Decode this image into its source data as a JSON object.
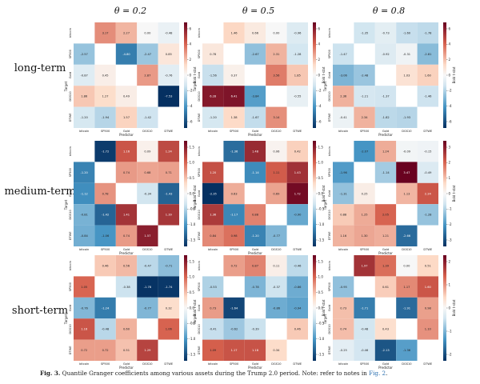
{
  "figure": {
    "caption_label": "Fig. 3.",
    "caption_text": "Quantile Granger coefficients among various assets during the Trump 2.0 period. Note: refer to notes in",
    "caption_link": "Fig. 2",
    "caption_end": "."
  },
  "chart_data": {
    "type": "heatmap",
    "assets": [
      "bitcoin",
      "SP500",
      "Gold",
      "DGS10",
      "DTWE"
    ],
    "xlabel": "Predictor",
    "ylabel": "Target",
    "colorbar_label": "Bold t-stat",
    "columns": [
      "θ = 0.2",
      "θ = 0.5",
      "θ = 0.8"
    ],
    "rows": [
      "long-term",
      "medium-term",
      "short-term"
    ],
    "panels": [
      {
        "row": "long-term",
        "column": "θ = 0.2",
        "cbar_ticks": [
          "6",
          "4",
          "2",
          "0",
          "-2",
          "-4",
          "-6"
        ],
        "vmax": 7,
        "values": [
          [
            null,
            3.17,
            2.27,
            0.0,
            -0.48
          ],
          [
            -2.57,
            null,
            -4.8,
            -2.47,
            0.85
          ],
          [
            -0.87,
            0.45,
            null,
            2.87,
            -0.76
          ],
          [
            1.86,
            1.27,
            0.49,
            null,
            -7.53
          ],
          [
            -1.2,
            -1.94,
            1.57,
            -1.42,
            null
          ]
        ]
      },
      {
        "row": "long-term",
        "column": "θ = 0.5",
        "cbar_ticks": [
          "6",
          "4",
          "2",
          "0",
          "-2",
          "-4",
          "-6"
        ],
        "vmax": 7,
        "values": [
          [
            null,
            1.46,
            0.66,
            0.0,
            -0.96
          ],
          [
            0.78,
            null,
            -2.67,
            2.31,
            -1.28
          ],
          [
            -1.56,
            0.37,
            null,
            3.56,
            1.85
          ],
          [
            6.28,
            6.41,
            -3.84,
            null,
            -0.55
          ],
          [
            -1.2,
            1.38,
            -1.67,
            3.14,
            null
          ]
        ]
      },
      {
        "row": "long-term",
        "column": "θ = 0.8",
        "cbar_ticks": [
          "6",
          "4",
          "2",
          "0",
          "-2",
          "-4",
          "-6"
        ],
        "vmax": 7,
        "values": [
          [
            null,
            -1.35,
            -0.73,
            -1.6,
            -1.78
          ],
          [
            -1.47,
            null,
            -0.92,
            -0.31,
            -2.81
          ],
          [
            -3.06,
            -2.48,
            null,
            1.03,
            1.6
          ],
          [
            2.36,
            -1.21,
            -1.37,
            null,
            -1.46
          ],
          [
            -0.41,
            2.34,
            -1.82,
            -1.93,
            null
          ]
        ]
      },
      {
        "row": "medium-term",
        "column": "θ = 0.2",
        "cbar_ticks": [
          "1.5",
          "1.0",
          "0.5",
          "0.0",
          "-0.5",
          "-1.0",
          "-1.5"
        ],
        "vmax": 1.8,
        "values": [
          [
            null,
            -1.72,
            1.16,
            0.09,
            1.24
          ],
          [
            -1.2,
            null,
            0.74,
            0.68,
            0.71
          ],
          [
            -1.12,
            0.78,
            null,
            -0.34,
            -1.43
          ],
          [
            -0.81,
            -1.42,
            1.41,
            null,
            1.39
          ],
          [
            -0.84,
            -1.06,
            0.74,
            1.57,
            null
          ]
        ]
      },
      {
        "row": "medium-term",
        "column": "θ = 0.5",
        "cbar_ticks": [
          "1.5",
          "1.0",
          "0.5",
          "0.0",
          "-0.5",
          "-1.0",
          "-1.5"
        ],
        "vmax": 1.8,
        "values": [
          [
            null,
            -1.36,
            1.48,
            0.06,
            0.42
          ],
          [
            1.2,
            null,
            -1.14,
            1.11,
            1.43
          ],
          [
            -2.35,
            0.63,
            null,
            0.69,
            1.72
          ],
          [
            1.36,
            -1.17,
            0.88,
            null,
            -0.9
          ],
          [
            0.84,
            0.98,
            -1.2,
            -0.77,
            null
          ]
        ]
      },
      {
        "row": "medium-term",
        "column": "θ = 0.8",
        "cbar_ticks": [
          "3",
          "2",
          "1",
          "0",
          "-1",
          "-2",
          "-3"
        ],
        "vmax": 3.5,
        "values": [
          [
            null,
            -2.07,
            1.24,
            -0.09,
            -0.15
          ],
          [
            -1.96,
            null,
            -1.14,
            3.47,
            -0.49
          ],
          [
            -1.31,
            0.25,
            null,
            1.13,
            2.24
          ],
          [
            0.88,
            1.25,
            2.05,
            null,
            -1.28
          ],
          [
            1.16,
            1.3,
            1.21,
            -2.66,
            null
          ]
        ]
      },
      {
        "row": "short-term",
        "column": "θ = 0.2",
        "cbar_ticks": [
          "1.5",
          "1.0",
          "0.5",
          "0.0",
          "-0.5",
          "-1.0",
          "-1.5"
        ],
        "vmax": 1.8,
        "values": [
          [
            null,
            0.46,
            0.56,
            -0.47,
            -0.71
          ],
          [
            1.05,
            null,
            -0.38,
            -1.78,
            -1.74
          ],
          [
            -0.76,
            -1.24,
            null,
            -0.77,
            0.32
          ],
          [
            1.16,
            -0.48,
            0.6,
            null,
            1.06
          ],
          [
            0.72,
            0.72,
            0.51,
            1.29,
            null
          ]
        ]
      },
      {
        "row": "short-term",
        "column": "θ = 0.5",
        "cbar_ticks": [
          "1.5",
          "1.0",
          "0.5",
          "0.0",
          "-0.5",
          "-1.0",
          "-1.5"
        ],
        "vmax": 1.8,
        "values": [
          [
            null,
            0.72,
            0.87,
            0.11,
            -0.46
          ],
          [
            -0.53,
            null,
            -0.78,
            -0.37,
            -0.86
          ],
          [
            0.73,
            -1.64,
            null,
            -0.86,
            -0.94
          ],
          [
            -0.41,
            -0.62,
            -0.39,
            null,
            0.46
          ],
          [
            1.09,
            1.17,
            1.18,
            0.34,
            null
          ]
        ]
      },
      {
        "row": "short-term",
        "column": "θ = 0.8",
        "cbar_ticks": [
          "2",
          "1",
          "0",
          "-1",
          "-2"
        ],
        "vmax": 2.5,
        "values": [
          [
            null,
            1.97,
            1.39,
            0.0,
            0.51
          ],
          [
            -0.95,
            null,
            0.61,
            1.17,
            1.6
          ],
          [
            0.73,
            -1.71,
            null,
            -1.91,
            0.98
          ],
          [
            0.74,
            -0.48,
            0.43,
            null,
            1.1
          ],
          [
            -0.25,
            -0.46,
            -2.13,
            -1.36,
            null
          ]
        ]
      }
    ]
  }
}
